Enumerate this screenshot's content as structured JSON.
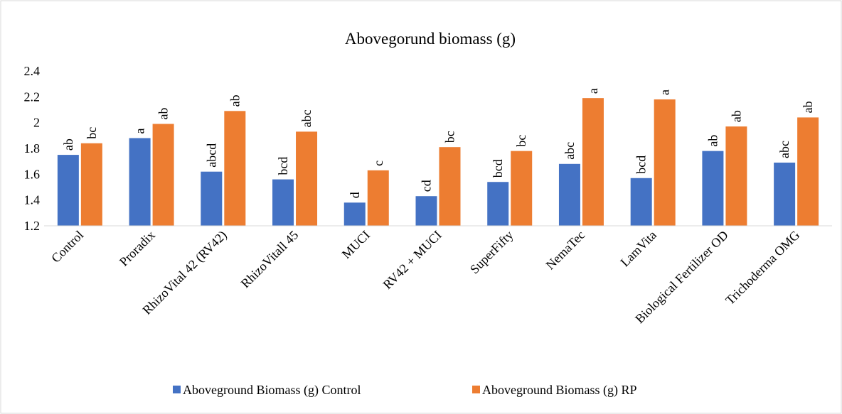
{
  "chart_data": {
    "type": "bar",
    "title": "Abovegorund biomass (g)",
    "categories": [
      "Control",
      "Proradix",
      "RhizoVital 42 (RV42)",
      "RhizoVitall 45",
      "MUCI",
      "RV42 + MUCI",
      "SuperFifty",
      "NemaTec",
      "LamVita",
      "Biological Fertilizer OD",
      "Trichoderma OMG"
    ],
    "series": [
      {
        "name": "Aboveground Biomass (g) Control",
        "color": "#4472c4",
        "values": [
          1.75,
          1.88,
          1.62,
          1.56,
          1.38,
          1.43,
          1.54,
          1.68,
          1.57,
          1.78,
          1.69
        ],
        "annotations": [
          "ab",
          "a",
          "abcd",
          "bcd",
          "d",
          "cd",
          "bcd",
          "abc",
          "bcd",
          "ab",
          "abc"
        ]
      },
      {
        "name": "Aboveground Biomass (g) RP",
        "color": "#ed7d31",
        "values": [
          1.84,
          1.99,
          2.09,
          1.93,
          1.63,
          1.81,
          1.78,
          2.19,
          2.18,
          1.97,
          2.04
        ],
        "annotations": [
          "bc",
          "ab",
          "ab",
          "abc",
          "c",
          "bc",
          "bc",
          "a",
          "a",
          "ab",
          "ab"
        ]
      }
    ],
    "ylim": [
      1.2,
      2.4
    ],
    "yticks": [
      1.2,
      1.4,
      1.6,
      1.8,
      2,
      2.2,
      2.4
    ],
    "grid": false,
    "legend": "bottom"
  }
}
